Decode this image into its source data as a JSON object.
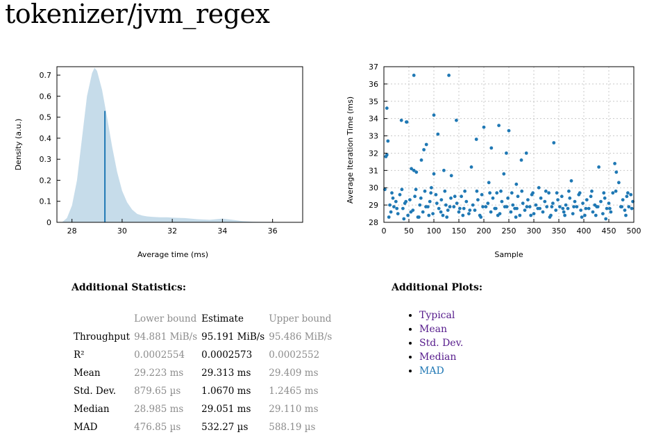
{
  "page": {
    "title": "tokenizer/jvm_regex"
  },
  "pdf_chart": {
    "chart_data": {
      "type": "area",
      "xlabel": "Average time (ms)",
      "ylabel": "Density (a.u.)",
      "xlim": [
        27.4,
        37.2
      ],
      "ylim": [
        0,
        0.74
      ],
      "xticks": [
        "28",
        "30",
        "32",
        "34",
        "36"
      ],
      "yticks": [
        "0",
        "0.1",
        "0.2",
        "0.3",
        "0.4",
        "0.5",
        "0.6",
        "0.7"
      ],
      "mean_line": {
        "x": 29.313,
        "y": 0.53
      },
      "x": [
        27.6,
        27.8,
        28.0,
        28.2,
        28.4,
        28.6,
        28.8,
        28.9,
        29.0,
        29.2,
        29.4,
        29.6,
        29.8,
        30.0,
        30.2,
        30.4,
        30.6,
        30.8,
        31.0,
        31.2,
        31.5,
        31.8,
        32.0,
        32.5,
        33.0,
        33.5,
        34.0,
        34.4,
        34.8,
        35.2,
        35.6,
        36.0,
        36.5,
        36.9
      ],
      "y": [
        0.0,
        0.02,
        0.08,
        0.2,
        0.4,
        0.6,
        0.71,
        0.735,
        0.72,
        0.63,
        0.5,
        0.36,
        0.24,
        0.15,
        0.095,
        0.06,
        0.04,
        0.032,
        0.028,
        0.026,
        0.024,
        0.024,
        0.022,
        0.02,
        0.015,
        0.012,
        0.018,
        0.012,
        0.006,
        0.003,
        0.002,
        0.002,
        0.001,
        0.0
      ],
      "grid": false,
      "fill_color": "#c6dcea",
      "line_color": "#1f78b4"
    }
  },
  "reg_chart": {
    "chart_data": {
      "type": "scatter",
      "xlabel": "Sample",
      "ylabel": "Average Iteration Time (ms)",
      "xlim": [
        0,
        500
      ],
      "ylim": [
        28,
        37
      ],
      "xticks": [
        "0",
        "50",
        "100",
        "150",
        "200",
        "250",
        "300",
        "350",
        "400",
        "450",
        "500"
      ],
      "yticks": [
        "28",
        "29",
        "30",
        "31",
        "32",
        "33",
        "34",
        "35",
        "36",
        "37"
      ],
      "grid": true,
      "point_color": "#1f78b4",
      "points": [
        [
          2,
          29.9
        ],
        [
          4,
          31.8
        ],
        [
          6,
          31.9
        ],
        [
          6,
          34.6
        ],
        [
          8,
          32.7
        ],
        [
          35,
          33.9
        ],
        [
          45,
          33.8
        ],
        [
          46,
          33.8
        ],
        [
          55,
          31.1
        ],
        [
          60,
          36.5
        ],
        [
          60,
          31.0
        ],
        [
          65,
          30.9
        ],
        [
          75,
          31.6
        ],
        [
          80,
          32.2
        ],
        [
          85,
          32.5
        ],
        [
          95,
          30.0
        ],
        [
          100,
          34.2
        ],
        [
          100,
          30.8
        ],
        [
          108,
          33.1
        ],
        [
          120,
          31.0
        ],
        [
          130,
          36.5
        ],
        [
          135,
          30.7
        ],
        [
          145,
          33.9
        ],
        [
          175,
          31.2
        ],
        [
          185,
          32.8
        ],
        [
          200,
          33.5
        ],
        [
          210,
          30.3
        ],
        [
          215,
          32.3
        ],
        [
          230,
          33.6
        ],
        [
          240,
          30.8
        ],
        [
          245,
          32.0
        ],
        [
          250,
          33.3
        ],
        [
          265,
          30.2
        ],
        [
          275,
          31.6
        ],
        [
          285,
          32.0
        ],
        [
          310,
          30.0
        ],
        [
          340,
          32.6
        ],
        [
          375,
          30.4
        ],
        [
          430,
          31.2
        ],
        [
          462,
          31.4
        ],
        [
          465,
          30.9
        ],
        [
          470,
          30.3
        ],
        [
          12,
          29.0
        ],
        [
          14,
          28.6
        ],
        [
          18,
          29.4
        ],
        [
          20,
          28.9
        ],
        [
          24,
          29.2
        ],
        [
          28,
          28.5
        ],
        [
          32,
          29.6
        ],
        [
          38,
          28.8
        ],
        [
          42,
          29.1
        ],
        [
          48,
          28.4
        ],
        [
          52,
          29.3
        ],
        [
          58,
          28.7
        ],
        [
          62,
          29.5
        ],
        [
          68,
          28.3
        ],
        [
          72,
          29.0
        ],
        [
          78,
          28.6
        ],
        [
          82,
          29.8
        ],
        [
          88,
          28.9
        ],
        [
          92,
          29.2
        ],
        [
          98,
          28.5
        ],
        [
          104,
          29.6
        ],
        [
          110,
          28.8
        ],
        [
          115,
          29.3
        ],
        [
          118,
          28.4
        ],
        [
          124,
          29.0
        ],
        [
          128,
          28.7
        ],
        [
          134,
          29.4
        ],
        [
          140,
          28.9
        ],
        [
          146,
          29.1
        ],
        [
          150,
          28.6
        ],
        [
          155,
          29.5
        ],
        [
          160,
          28.8
        ],
        [
          165,
          29.2
        ],
        [
          170,
          28.5
        ],
        [
          178,
          29.0
        ],
        [
          182,
          28.7
        ],
        [
          188,
          29.3
        ],
        [
          192,
          28.4
        ],
        [
          196,
          29.6
        ],
        [
          204,
          28.9
        ],
        [
          208,
          29.1
        ],
        [
          214,
          28.6
        ],
        [
          218,
          29.4
        ],
        [
          222,
          28.8
        ],
        [
          226,
          29.7
        ],
        [
          232,
          28.5
        ],
        [
          236,
          29.2
        ],
        [
          242,
          28.9
        ],
        [
          248,
          29.4
        ],
        [
          254,
          28.6
        ],
        [
          258,
          29.0
        ],
        [
          262,
          28.8
        ],
        [
          268,
          29.5
        ],
        [
          272,
          28.4
        ],
        [
          278,
          29.1
        ],
        [
          282,
          28.7
        ],
        [
          288,
          29.3
        ],
        [
          292,
          28.9
        ],
        [
          296,
          29.6
        ],
        [
          300,
          28.5
        ],
        [
          304,
          29.0
        ],
        [
          308,
          28.8
        ],
        [
          314,
          29.4
        ],
        [
          318,
          28.6
        ],
        [
          322,
          29.2
        ],
        [
          326,
          28.9
        ],
        [
          330,
          29.7
        ],
        [
          334,
          28.4
        ],
        [
          338,
          29.1
        ],
        [
          344,
          28.7
        ],
        [
          348,
          29.3
        ],
        [
          352,
          28.9
        ],
        [
          356,
          29.5
        ],
        [
          360,
          28.6
        ],
        [
          364,
          29.0
        ],
        [
          368,
          28.8
        ],
        [
          372,
          29.4
        ],
        [
          378,
          28.5
        ],
        [
          382,
          29.2
        ],
        [
          386,
          28.9
        ],
        [
          390,
          29.6
        ],
        [
          394,
          28.7
        ],
        [
          398,
          29.1
        ],
        [
          402,
          28.4
        ],
        [
          406,
          29.3
        ],
        [
          410,
          28.8
        ],
        [
          414,
          29.5
        ],
        [
          418,
          28.6
        ],
        [
          422,
          29.0
        ],
        [
          426,
          28.9
        ],
        [
          434,
          29.2
        ],
        [
          438,
          28.5
        ],
        [
          442,
          29.4
        ],
        [
          446,
          28.8
        ],
        [
          450,
          29.1
        ],
        [
          454,
          28.6
        ],
        [
          458,
          29.7
        ],
        [
          474,
          28.9
        ],
        [
          478,
          29.3
        ],
        [
          482,
          28.7
        ],
        [
          486,
          29.5
        ],
        [
          490,
          28.9
        ],
        [
          494,
          29.6
        ],
        [
          498,
          29.2
        ],
        [
          16,
          29.7
        ],
        [
          26,
          28.8
        ],
        [
          36,
          29.9
        ],
        [
          44,
          29.2
        ],
        [
          54,
          28.6
        ],
        [
          64,
          29.9
        ],
        [
          74,
          29.4
        ],
        [
          84,
          28.9
        ],
        [
          94,
          29.7
        ],
        [
          106,
          29.1
        ],
        [
          114,
          28.6
        ],
        [
          122,
          29.8
        ],
        [
          132,
          28.9
        ],
        [
          142,
          29.5
        ],
        [
          152,
          28.8
        ],
        [
          162,
          29.8
        ],
        [
          172,
          28.7
        ],
        [
          186,
          29.8
        ],
        [
          198,
          28.9
        ],
        [
          212,
          29.7
        ],
        [
          224,
          28.8
        ],
        [
          234,
          29.8
        ],
        [
          246,
          28.9
        ],
        [
          256,
          29.7
        ],
        [
          266,
          28.8
        ],
        [
          276,
          29.8
        ],
        [
          286,
          28.9
        ],
        [
          298,
          29.7
        ],
        [
          312,
          28.8
        ],
        [
          324,
          29.8
        ],
        [
          336,
          28.9
        ],
        [
          346,
          29.7
        ],
        [
          358,
          28.8
        ],
        [
          370,
          29.8
        ],
        [
          380,
          28.9
        ],
        [
          392,
          29.7
        ],
        [
          404,
          28.8
        ],
        [
          416,
          29.8
        ],
        [
          428,
          28.9
        ],
        [
          440,
          29.7
        ],
        [
          452,
          28.8
        ],
        [
          464,
          29.8
        ],
        [
          476,
          28.9
        ],
        [
          488,
          29.7
        ],
        [
          496,
          28.8
        ],
        [
          10,
          28.3
        ],
        [
          40,
          28.2
        ],
        [
          70,
          28.3
        ],
        [
          90,
          28.4
        ],
        [
          126,
          28.3
        ],
        [
          158,
          28.4
        ],
        [
          194,
          28.3
        ],
        [
          228,
          28.4
        ],
        [
          264,
          28.3
        ],
        [
          294,
          28.4
        ],
        [
          332,
          28.3
        ],
        [
          362,
          28.4
        ],
        [
          396,
          28.3
        ],
        [
          424,
          28.4
        ],
        [
          444,
          28.2
        ],
        [
          484,
          28.4
        ]
      ]
    }
  },
  "stats": {
    "heading": "Additional Statistics:",
    "columns": {
      "blank": "",
      "lower": "Lower bound",
      "estimate": "Estimate",
      "upper": "Upper bound"
    },
    "rows": [
      {
        "label": "Throughput",
        "lower": "94.881 MiB/s",
        "estimate": "95.191 MiB/s",
        "upper": "95.486 MiB/s"
      },
      {
        "label": "R²",
        "lower": "0.0002554",
        "estimate": "0.0002573",
        "upper": "0.0002552"
      },
      {
        "label": "Mean",
        "lower": "29.223 ms",
        "estimate": "29.313 ms",
        "upper": "29.409 ms"
      },
      {
        "label": "Std. Dev.",
        "lower": "879.65 µs",
        "estimate": "1.0670 ms",
        "upper": "1.2465 ms"
      },
      {
        "label": "Median",
        "lower": "28.985 ms",
        "estimate": "29.051 ms",
        "upper": "29.110 ms"
      },
      {
        "label": "MAD",
        "lower": "476.85 µs",
        "estimate": "532.27 µs",
        "upper": "588.19 µs"
      }
    ]
  },
  "plots": {
    "heading": "Additional Plots:",
    "links": [
      {
        "label": "Typical",
        "visited": true
      },
      {
        "label": "Mean",
        "visited": true
      },
      {
        "label": "Std. Dev.",
        "visited": true
      },
      {
        "label": "Median",
        "visited": true
      },
      {
        "label": "MAD",
        "visited": false
      }
    ]
  }
}
